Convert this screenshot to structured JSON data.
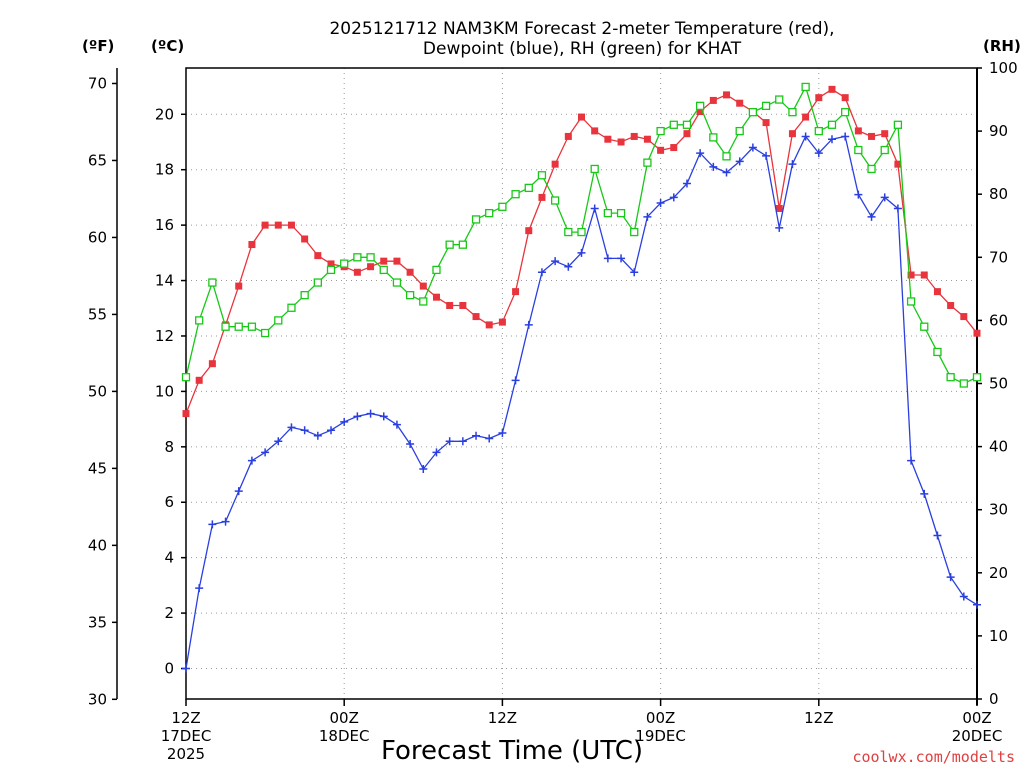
{
  "chart_data": {
    "type": "line",
    "title_line1": "2025121712 NAM3KM Forecast 2-meter Temperature (red),",
    "title_line2": "Dewpoint (blue), RH (green) for KHAT",
    "xlabel": "Forecast Time (UTC)",
    "credit": "coolwx.com/modelts",
    "units": {
      "fahrenheit": "(ºF)",
      "celsius": "(ºC)",
      "rh": "(RH)"
    },
    "x_range_hours": [
      0,
      60
    ],
    "x_ticks": [
      {
        "hour": 0,
        "line1": "12Z",
        "line2": "17DEC",
        "line3": "2025"
      },
      {
        "hour": 12,
        "line1": "00Z",
        "line2": "18DEC",
        "line3": ""
      },
      {
        "hour": 24,
        "line1": "12Z",
        "line2": "",
        "line3": ""
      },
      {
        "hour": 36,
        "line1": "00Z",
        "line2": "19DEC",
        "line3": ""
      },
      {
        "hour": 48,
        "line1": "12Z",
        "line2": "",
        "line3": ""
      },
      {
        "hour": 60,
        "line1": "00Z",
        "line2": "20DEC",
        "line3": ""
      }
    ],
    "celsius_range": [
      -1.1,
      21.67
    ],
    "fahrenheit_ticks": [
      "30",
      "35",
      "40",
      "45",
      "50",
      "55",
      "60",
      "65",
      "70"
    ],
    "celsius_ticks": [
      "0",
      "2",
      "4",
      "6",
      "8",
      "10",
      "12",
      "14",
      "16",
      "18",
      "20"
    ],
    "rh_range": [
      0,
      100
    ],
    "rh_ticks": [
      "0",
      "10",
      "20",
      "30",
      "40",
      "50",
      "60",
      "70",
      "80",
      "90",
      "100"
    ],
    "colors": {
      "temperature": "#e8343c",
      "dewpoint": "#2a3fe0",
      "rh": "#18c818"
    },
    "series": [
      {
        "name": "Temperature",
        "units": "C",
        "values": [
          9.2,
          10.4,
          11.0,
          12.4,
          13.8,
          15.3,
          16.0,
          16.0,
          16.0,
          15.5,
          14.9,
          14.6,
          14.5,
          14.3,
          14.5,
          14.7,
          14.7,
          14.3,
          13.8,
          13.4,
          13.1,
          13.1,
          12.7,
          12.4,
          12.5,
          13.6,
          15.8,
          17.0,
          18.2,
          19.2,
          19.9,
          19.4,
          19.1,
          19.0,
          19.2,
          19.1,
          18.7,
          18.8,
          19.3,
          20.1,
          20.5,
          20.7,
          20.4,
          20.1,
          19.7,
          16.6,
          19.3,
          19.9,
          20.6,
          20.9,
          20.6,
          19.4,
          19.2,
          19.3,
          18.2,
          14.2,
          14.2,
          13.6,
          13.1,
          12.7,
          12.1
        ]
      },
      {
        "name": "Dewpoint",
        "units": "C",
        "values": [
          0.0,
          2.9,
          5.2,
          5.3,
          6.4,
          7.5,
          7.8,
          8.2,
          8.7,
          8.6,
          8.4,
          8.6,
          8.9,
          9.1,
          9.2,
          9.1,
          8.8,
          8.1,
          7.2,
          7.8,
          8.2,
          8.2,
          8.4,
          8.3,
          8.5,
          10.4,
          12.4,
          14.3,
          14.7,
          14.5,
          15.0,
          16.6,
          14.8,
          14.8,
          14.3,
          16.3,
          16.8,
          17.0,
          17.5,
          18.6,
          18.1,
          17.9,
          18.3,
          18.8,
          18.5,
          15.9,
          18.2,
          19.2,
          18.6,
          19.1,
          19.2,
          17.1,
          16.3,
          17.0,
          16.6,
          7.5,
          6.3,
          4.8,
          3.3,
          2.6,
          2.3
        ]
      },
      {
        "name": "RH",
        "units": "%",
        "values": [
          51,
          60,
          66,
          59,
          59,
          59,
          58,
          60,
          62,
          64,
          66,
          68,
          69,
          70,
          70,
          68,
          66,
          64,
          63,
          68,
          72,
          72,
          76,
          77,
          78,
          80,
          81,
          83,
          79,
          74,
          74,
          84,
          77,
          77,
          74,
          85,
          90,
          91,
          91,
          94,
          89,
          86,
          90,
          93,
          94,
          95,
          93,
          97,
          90,
          91,
          93,
          87,
          84,
          87,
          91,
          63,
          59,
          55,
          51,
          50,
          51
        ]
      }
    ]
  }
}
